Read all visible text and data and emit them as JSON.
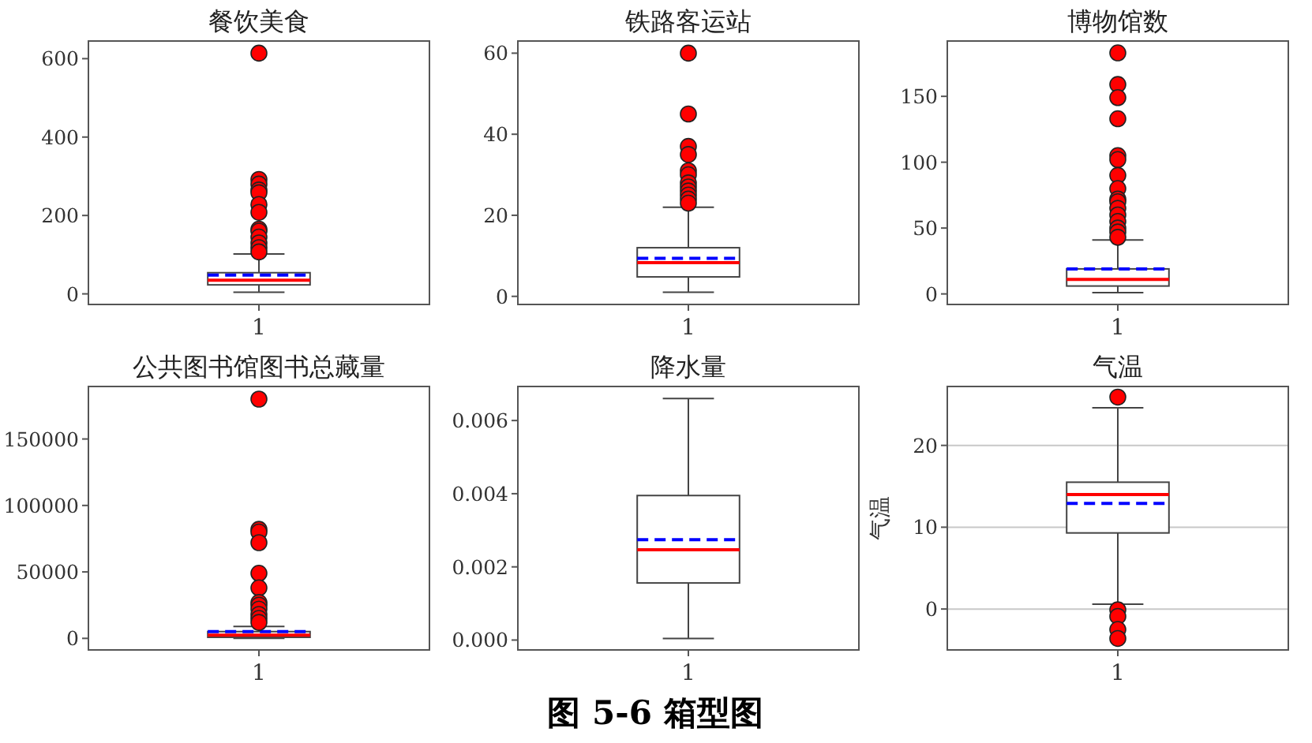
{
  "chart_data": [
    {
      "type": "box",
      "title": "餐饮美食",
      "categories": [
        "1"
      ],
      "ylim": [
        -27,
        645
      ],
      "yticks": [
        0,
        200,
        400,
        600
      ],
      "boxes": [
        {
          "low": 4,
          "q1": 23,
          "median": 35,
          "q3": 54,
          "high": 102,
          "mean": 48,
          "outliers": [
            614,
            292,
            280,
            265,
            258,
            228,
            208,
            165,
            160,
            145,
            130,
            118,
            107
          ]
        }
      ]
    },
    {
      "type": "box",
      "title": "铁路客运站",
      "categories": [
        "1"
      ],
      "ylim": [
        -2,
        63
      ],
      "yticks": [
        0,
        20,
        40,
        60
      ],
      "boxes": [
        {
          "low": 1,
          "q1": 4.8,
          "median": 8.3,
          "q3": 12,
          "high": 22,
          "mean": 9.4,
          "outliers": [
            60,
            45,
            37,
            35,
            31,
            30,
            28,
            27,
            26,
            25,
            24,
            23
          ]
        }
      ]
    },
    {
      "type": "box",
      "title": "博物馆数",
      "categories": [
        "1"
      ],
      "ylim": [
        -8,
        192
      ],
      "yticks": [
        0,
        50,
        100,
        150
      ],
      "boxes": [
        {
          "low": 1,
          "q1": 6,
          "median": 11,
          "q3": 19,
          "high": 41,
          "mean": 19,
          "outliers": [
            183,
            159,
            149,
            133,
            105,
            102,
            90,
            80,
            72,
            70,
            65,
            60,
            55,
            50,
            47,
            43
          ]
        }
      ]
    },
    {
      "type": "box",
      "title": "公共图书馆图书总藏量",
      "categories": [
        "1"
      ],
      "ylim": [
        -8700,
        189500
      ],
      "yticks": [
        0,
        50000,
        100000,
        150000
      ],
      "boxes": [
        {
          "low": 0,
          "q1": 800,
          "median": 2400,
          "q3": 5100,
          "high": 9000,
          "mean": 5100,
          "outliers": [
            180000,
            82000,
            80000,
            72000,
            49000,
            38000,
            27000,
            25000,
            22000,
            18000,
            15000,
            12000
          ]
        }
      ]
    },
    {
      "type": "box",
      "title": "降水量",
      "categories": [
        "1"
      ],
      "ylim": [
        -0.00027,
        0.00693
      ],
      "yticks": [
        {
          "value": 0,
          "label": "0.000"
        },
        {
          "value": 0.002,
          "label": "0.002"
        },
        {
          "value": 0.004,
          "label": "0.004"
        },
        {
          "value": 0.006,
          "label": "0.006"
        }
      ],
      "boxes": [
        {
          "low": 4e-05,
          "q1": 0.00156,
          "median": 0.00247,
          "q3": 0.00395,
          "high": 0.0066,
          "mean": 0.00274
        }
      ]
    },
    {
      "type": "box",
      "title": "气温",
      "ylabel": "气温",
      "categories": [
        "1"
      ],
      "ylim": [
        -5,
        27.2
      ],
      "yticks": [
        0,
        10,
        20
      ],
      "grid": "y",
      "boxes": [
        {
          "low": 0.6,
          "q1": 9.3,
          "median": 14,
          "q3": 15.5,
          "high": 24.6,
          "mean": 12.9,
          "outliers": [
            25.9,
            -0.1,
            -0.9,
            -2.5,
            -3.6
          ]
        }
      ]
    },
    {
      "type": "other",
      "title": "图 5-6 箱型图"
    }
  ]
}
